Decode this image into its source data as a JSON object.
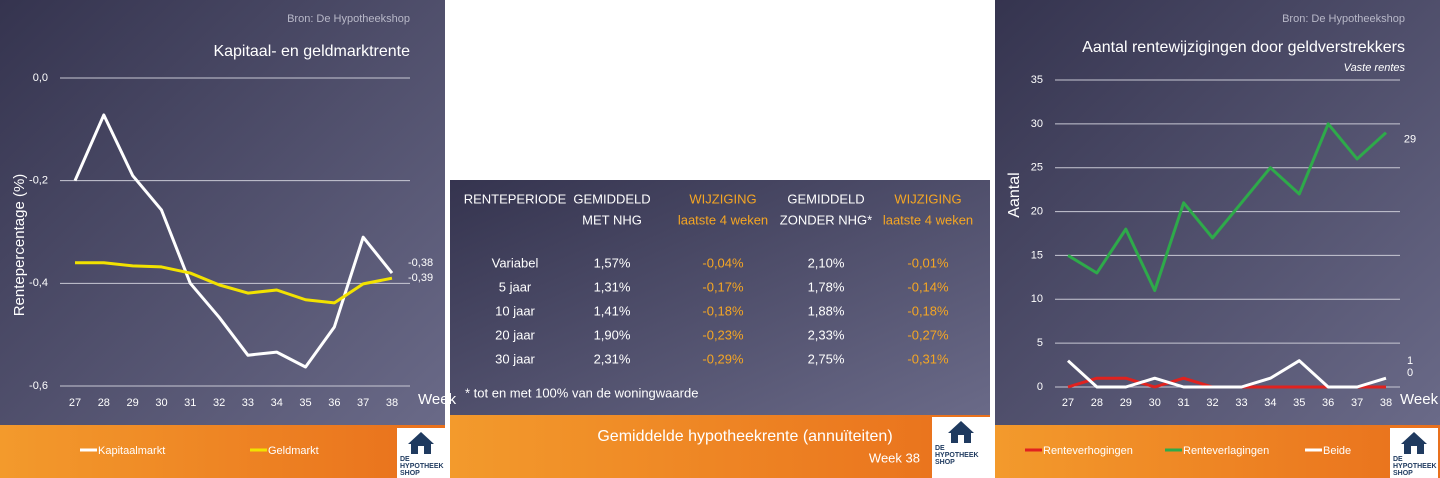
{
  "chart_data": [
    {
      "type": "line",
      "source": "Bron: De Hypotheekshop",
      "title": "Kapitaal- en geldmarktrente",
      "ylabel": "Rentepercentage (%)",
      "xlabel": "Week",
      "categories": [
        27,
        28,
        29,
        30,
        31,
        32,
        33,
        34,
        35,
        36,
        37,
        38
      ],
      "ylim": [
        -0.6,
        0
      ],
      "yticks": [
        {
          "value": -0.6,
          "label": "-0,6"
        },
        {
          "value": -0.4,
          "label": "-0,4"
        },
        {
          "value": -0.2,
          "label": "-0,2"
        },
        {
          "value": 0,
          "label": "0,0"
        }
      ],
      "grid": true,
      "legend": "bottom",
      "series": [
        {
          "name": "Kapitaalmarkt",
          "color": "#ffffff",
          "values": [
            -0.2,
            -0.072,
            -0.19,
            -0.257,
            -0.4,
            -0.466,
            -0.54,
            -0.534,
            -0.563,
            -0.485,
            -0.31,
            -0.38
          ],
          "value_labels": [
            null,
            null,
            null,
            null,
            null,
            null,
            null,
            null,
            null,
            null,
            null,
            "-0,38"
          ]
        },
        {
          "name": "Geldmarkt",
          "color": "#f2e200",
          "values": [
            -0.36,
            -0.36,
            -0.366,
            -0.368,
            -0.38,
            -0.403,
            -0.419,
            -0.413,
            -0.432,
            -0.438,
            -0.401,
            -0.39
          ],
          "value_labels": [
            null,
            null,
            null,
            null,
            null,
            null,
            null,
            null,
            null,
            null,
            null,
            "-0,39"
          ]
        }
      ]
    },
    {
      "type": "line",
      "source": "Bron: De Hypotheekshop",
      "title": "Aantal rentewijzigingen door geldverstrekkers",
      "subtitle": "Vaste rentes",
      "ylabel": "Aantal",
      "xlabel": "Week",
      "categories": [
        27,
        28,
        29,
        30,
        31,
        32,
        33,
        34,
        35,
        36,
        37,
        38
      ],
      "ylim": [
        0,
        35
      ],
      "yticks": [
        0,
        5,
        10,
        15,
        20,
        25,
        30,
        35
      ],
      "grid": true,
      "legend": "bottom",
      "label_last": true,
      "series": [
        {
          "name": "Renteverhogingen",
          "color": "#e0221f",
          "values": [
            0,
            1,
            1,
            0,
            1,
            0,
            0,
            0,
            0,
            0,
            0,
            0
          ]
        },
        {
          "name": "Renteverlagingen",
          "color": "#2eaa4a",
          "values": [
            15,
            13,
            18,
            11,
            21,
            17,
            21,
            25,
            22,
            30,
            26,
            29
          ]
        },
        {
          "name": "Beide",
          "color": "#ffffff",
          "values": [
            3,
            0,
            0,
            1,
            0,
            0,
            0,
            1,
            3,
            0,
            0,
            1
          ]
        }
      ]
    }
  ],
  "table": {
    "headers": [
      [
        "RENTEPERIODE"
      ],
      [
        "GEMIDDELD",
        "MET NHG"
      ],
      [
        "WIJZIGING",
        "laatste 4 weken"
      ],
      [
        "GEMIDDELD",
        "ZONDER NHG*"
      ],
      [
        "WIJZIGING",
        "laatste 4 weken"
      ]
    ],
    "rows": [
      [
        "Variabel",
        "1,57%",
        "-0,04%",
        "2,10%",
        "-0,01%"
      ],
      [
        "5 jaar",
        "1,31%",
        "-0,17%",
        "1,78%",
        "-0,14%"
      ],
      [
        "10 jaar",
        "1,41%",
        "-0,18%",
        "1,88%",
        "-0,18%"
      ],
      [
        "20 jaar",
        "1,90%",
        "-0,23%",
        "2,33%",
        "-0,27%"
      ],
      [
        "30 jaar",
        "2,31%",
        "-0,29%",
        "2,75%",
        "-0,31%"
      ]
    ],
    "highlight_columns": [
      2,
      4
    ],
    "highlight_color": "#f5a623",
    "footnote": "* tot en met 100% van de woningwaarde",
    "footer_title": "Gemiddelde hypotheekrente (annuïteiten)",
    "footer_subtitle": "Week 38"
  },
  "logo": [
    "DE",
    "HYPOTHEEK",
    "SHOP"
  ]
}
